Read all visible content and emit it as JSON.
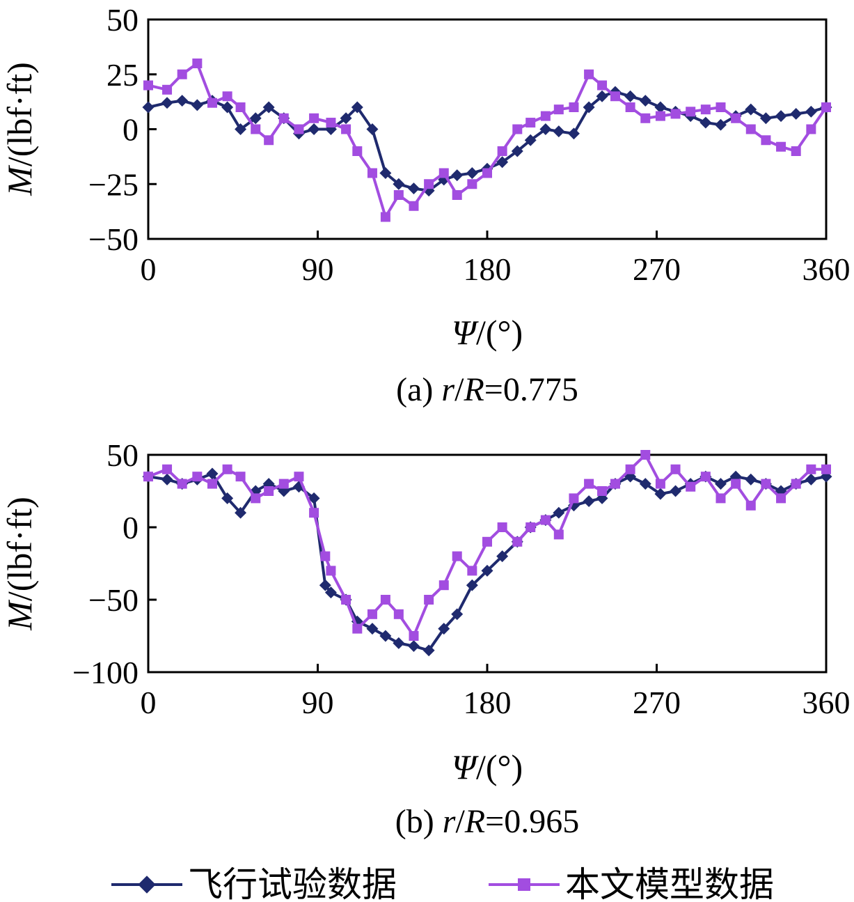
{
  "legend": {
    "series1": {
      "label": "飞行试验数据",
      "color": "#1f2a6e",
      "marker": "diamond"
    },
    "series2": {
      "label": "本文模型数据",
      "color": "#a24de0",
      "marker": "square"
    }
  },
  "chart_data": [
    {
      "type": "line",
      "caption": "(a) r/R=0.775",
      "caption_prefix": "(a) ",
      "caption_var1": "r",
      "caption_slash": "/",
      "caption_var2": "R",
      "caption_value": "=0.775",
      "xlabel_var": "Ψ",
      "xlabel_unit": "/(°)",
      "ylabel_var": "M",
      "ylabel_unit": "/(lbf·ft)",
      "xlim": [
        0,
        360
      ],
      "ylim": [
        -50,
        50
      ],
      "xticks": [
        0,
        90,
        180,
        270,
        360
      ],
      "yticks": [
        50,
        25,
        0,
        -25,
        -50
      ],
      "yticklabels": [
        "50",
        "25",
        "0",
        "−25",
        "−50"
      ],
      "grid": false,
      "series": [
        {
          "name": "飞行试验数据",
          "x": [
            0,
            10,
            18,
            26,
            34,
            42,
            49,
            57,
            64,
            72,
            80,
            88,
            97,
            105,
            111,
            119,
            126,
            133,
            141,
            149,
            157,
            164,
            172,
            180,
            188,
            196,
            203,
            211,
            218,
            226,
            234,
            241,
            248,
            256,
            264,
            272,
            280,
            288,
            296,
            304,
            312,
            320,
            328,
            336,
            344,
            352,
            360
          ],
          "y": [
            10,
            12,
            13,
            11,
            13,
            10,
            0,
            5,
            10,
            5,
            -2,
            0,
            0,
            5,
            10,
            0,
            -20,
            -25,
            -27,
            -28,
            -23,
            -21,
            -20,
            -18,
            -15,
            -10,
            -5,
            0,
            -1,
            -2,
            10,
            15,
            17,
            15,
            13,
            10,
            8,
            6,
            3,
            2,
            6,
            9,
            5,
            6,
            7,
            8,
            10
          ]
        },
        {
          "name": "本文模型数据",
          "x": [
            0,
            10,
            18,
            26,
            34,
            42,
            49,
            57,
            64,
            72,
            80,
            88,
            97,
            105,
            111,
            119,
            126,
            133,
            141,
            149,
            157,
            164,
            172,
            180,
            188,
            196,
            203,
            211,
            218,
            226,
            234,
            241,
            248,
            256,
            264,
            272,
            280,
            288,
            296,
            304,
            312,
            320,
            328,
            336,
            344,
            352,
            360
          ],
          "y": [
            20,
            18,
            25,
            30,
            12,
            15,
            10,
            0,
            -5,
            5,
            0,
            5,
            3,
            0,
            -10,
            -20,
            -40,
            -30,
            -35,
            -25,
            -20,
            -30,
            -25,
            -20,
            -10,
            0,
            3,
            6,
            9,
            10,
            25,
            20,
            15,
            10,
            5,
            6,
            7,
            8,
            9,
            10,
            5,
            0,
            -5,
            -8,
            -10,
            0,
            10
          ]
        }
      ]
    },
    {
      "type": "line",
      "caption": "(b) r/R=0.965",
      "caption_prefix": "(b) ",
      "caption_var1": "r",
      "caption_slash": "/",
      "caption_var2": "R",
      "caption_value": "=0.965",
      "xlabel_var": "Ψ",
      "xlabel_unit": "/(°)",
      "ylabel_var": "M",
      "ylabel_unit": "/(lbf·ft)",
      "xlim": [
        0,
        360
      ],
      "ylim": [
        -100,
        50
      ],
      "xticks": [
        0,
        90,
        180,
        270,
        360
      ],
      "yticks": [
        50,
        0,
        -50,
        -100
      ],
      "yticklabels": [
        "50",
        "0",
        "−50",
        "−100"
      ],
      "grid": false,
      "series": [
        {
          "name": "飞行试验数据",
          "x": [
            0,
            10,
            18,
            26,
            34,
            42,
            49,
            57,
            64,
            72,
            80,
            88,
            94,
            97,
            105,
            111,
            119,
            126,
            133,
            141,
            149,
            157,
            164,
            172,
            180,
            188,
            196,
            203,
            211,
            218,
            226,
            234,
            241,
            248,
            256,
            264,
            272,
            280,
            288,
            296,
            304,
            312,
            320,
            328,
            336,
            344,
            352,
            360
          ],
          "y": [
            35,
            33,
            30,
            33,
            37,
            20,
            10,
            25,
            30,
            25,
            28,
            20,
            -40,
            -45,
            -50,
            -65,
            -70,
            -75,
            -80,
            -82,
            -85,
            -70,
            -60,
            -40,
            -30,
            -20,
            -10,
            0,
            5,
            10,
            15,
            18,
            20,
            30,
            35,
            30,
            23,
            25,
            30,
            35,
            30,
            35,
            33,
            30,
            25,
            30,
            33,
            35
          ]
        },
        {
          "name": "本文模型数据",
          "x": [
            0,
            10,
            18,
            26,
            34,
            42,
            49,
            57,
            64,
            72,
            80,
            88,
            94,
            97,
            105,
            111,
            119,
            126,
            133,
            141,
            149,
            157,
            164,
            172,
            180,
            188,
            196,
            203,
            211,
            218,
            226,
            234,
            241,
            248,
            256,
            264,
            272,
            280,
            288,
            296,
            304,
            312,
            320,
            328,
            336,
            344,
            352,
            360
          ],
          "y": [
            35,
            40,
            30,
            35,
            30,
            40,
            35,
            20,
            25,
            30,
            35,
            10,
            -20,
            -30,
            -50,
            -70,
            -60,
            -50,
            -60,
            -75,
            -50,
            -40,
            -20,
            -30,
            -10,
            0,
            -10,
            0,
            5,
            -5,
            20,
            30,
            25,
            30,
            40,
            50,
            30,
            40,
            28,
            35,
            20,
            30,
            15,
            30,
            20,
            30,
            40,
            40
          ]
        }
      ]
    }
  ]
}
